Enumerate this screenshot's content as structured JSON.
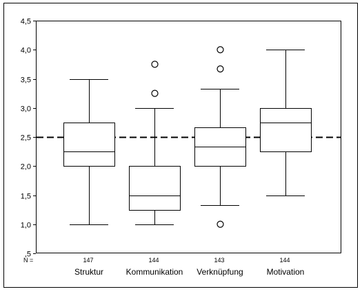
{
  "chart_data": {
    "type": "boxplot",
    "title": "",
    "xlabel": "",
    "ylabel": "",
    "ylim": [
      0.5,
      4.5
    ],
    "y_ticks": [
      0.5,
      1.0,
      1.5,
      2.0,
      2.5,
      3.0,
      3.5,
      4.0,
      4.5
    ],
    "y_tick_labels": [
      ",5",
      "1,0",
      "1,5",
      "2,0",
      "2,5",
      "3,0",
      "3,5",
      "4,0",
      "4,5"
    ],
    "n_prefix": "N =",
    "reference_line": {
      "value": 2.5,
      "style": "dashed"
    },
    "categories": [
      "Struktur",
      "Kommunikation",
      "Verknüpfung",
      "Motivation"
    ],
    "n": [
      "147",
      "144",
      "143",
      "144"
    ],
    "boxes": [
      {
        "whisker_low": 1.0,
        "q1": 2.0,
        "median": 2.25,
        "q3": 2.75,
        "whisker_high": 3.5,
        "outliers": []
      },
      {
        "whisker_low": 1.0,
        "q1": 1.25,
        "median": 1.5,
        "q3": 2.0,
        "whisker_high": 3.0,
        "outliers": [
          3.25,
          3.75
        ]
      },
      {
        "whisker_low": 1.33,
        "q1": 2.0,
        "median": 2.33,
        "q3": 2.67,
        "whisker_high": 3.33,
        "outliers": [
          1.0,
          3.67,
          4.0
        ]
      },
      {
        "whisker_low": 1.5,
        "q1": 2.25,
        "median": 2.75,
        "q3": 3.0,
        "whisker_high": 4.0,
        "outliers": []
      }
    ]
  }
}
